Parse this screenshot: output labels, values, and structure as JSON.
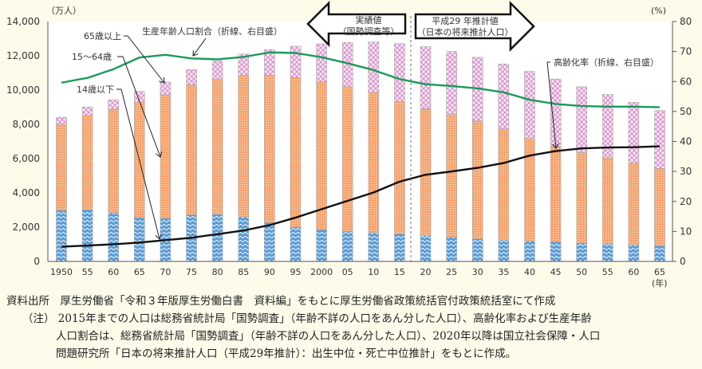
{
  "chart_data": {
    "type": "bar",
    "stacked": true,
    "y_unit": "（万人）",
    "y2_unit": "(%)",
    "x_unit": "(年)",
    "ylim": [
      0,
      14000
    ],
    "y2lim": [
      0,
      80
    ],
    "y_ticks": [
      "0",
      "2,000",
      "4,000",
      "6,000",
      "8,000",
      "10,000",
      "12,000",
      "14,000"
    ],
    "y2_ticks": [
      "0",
      "10",
      "20",
      "30",
      "40",
      "50",
      "60",
      "70",
      "80"
    ],
    "categories": [
      "1950",
      "55",
      "60",
      "65",
      "70",
      "75",
      "80",
      "85",
      "90",
      "95",
      "2000",
      "05",
      "10",
      "15",
      "20",
      "25",
      "30",
      "35",
      "40",
      "45",
      "50",
      "55",
      "60",
      "65"
    ],
    "series": [
      {
        "name": "14歳以下",
        "color": "#5a9bd5",
        "values": [
          2979,
          3012,
          2843,
          2553,
          2515,
          2722,
          2751,
          2603,
          2254,
          2003,
          1851,
          1759,
          1684,
          1595,
          1507,
          1407,
          1321,
          1246,
          1194,
          1138,
          1077,
          1012,
          951,
          898
        ]
      },
      {
        "name": "15～64歳",
        "color": "#f4a06a",
        "values": [
          5017,
          5517,
          6047,
          6744,
          7212,
          7584,
          7884,
          8251,
          8614,
          8726,
          8638,
          8442,
          8174,
          7728,
          7406,
          7170,
          6875,
          6494,
          5978,
          5584,
          5275,
          5028,
          4793,
          4529
        ]
      },
      {
        "name": "65歳以上",
        "color": "#e8b6e0",
        "values": [
          416,
          479,
          540,
          624,
          739,
          887,
          1065,
          1247,
          1493,
          1828,
          2204,
          2576,
          2948,
          3387,
          3619,
          3677,
          3716,
          3782,
          3921,
          3919,
          3841,
          3704,
          3540,
          3381
        ]
      }
    ],
    "lines": [
      {
        "name": "生産年齢人口割合（折線、右目盛）",
        "color": "#1a9a5a",
        "axis": "right",
        "values": [
          59.6,
          61.2,
          64.1,
          68.0,
          68.9,
          67.7,
          67.4,
          68.2,
          69.7,
          69.5,
          68.1,
          66.1,
          63.8,
          60.8,
          59.1,
          58.5,
          57.7,
          56.4,
          53.9,
          52.5,
          51.8,
          51.6,
          51.6,
          51.4
        ]
      },
      {
        "name": "高齢化率（折線、右目盛）",
        "color": "#111111",
        "axis": "right",
        "values": [
          4.9,
          5.3,
          5.7,
          6.3,
          7.1,
          7.9,
          9.1,
          10.3,
          12.1,
          14.6,
          17.4,
          20.2,
          23.0,
          26.6,
          28.9,
          30.0,
          31.2,
          32.8,
          35.3,
          36.8,
          37.7,
          38.0,
          38.1,
          38.4
        ]
      }
    ],
    "annotations": {
      "actual": [
        "実績値",
        "（国勢調査等）"
      ],
      "projection": [
        "平成29 年推計値",
        "（日本の将来推計人口）"
      ]
    }
  },
  "footer": {
    "source": "資料出所　厚生労働省「令和３年版厚生労働白書　資料編」をもとに厚生労働省政策統括官付政策統括室にて作成",
    "note1": "（注）  2015年までの人口は総務省統計局「国勢調査」（年齢不詳の人口をあん分した人口）、高齢化率および生産年齢",
    "note2": "人口割合は、総務省統計局「国勢調査」（年齢不詳の人口をあん分した人口）、2020年以降は国立社会保障・人口",
    "note3": "問題研究所「日本の将来推計人口（平成29年推計）：出生中位・死亡中位推計」をもとに作成。"
  }
}
